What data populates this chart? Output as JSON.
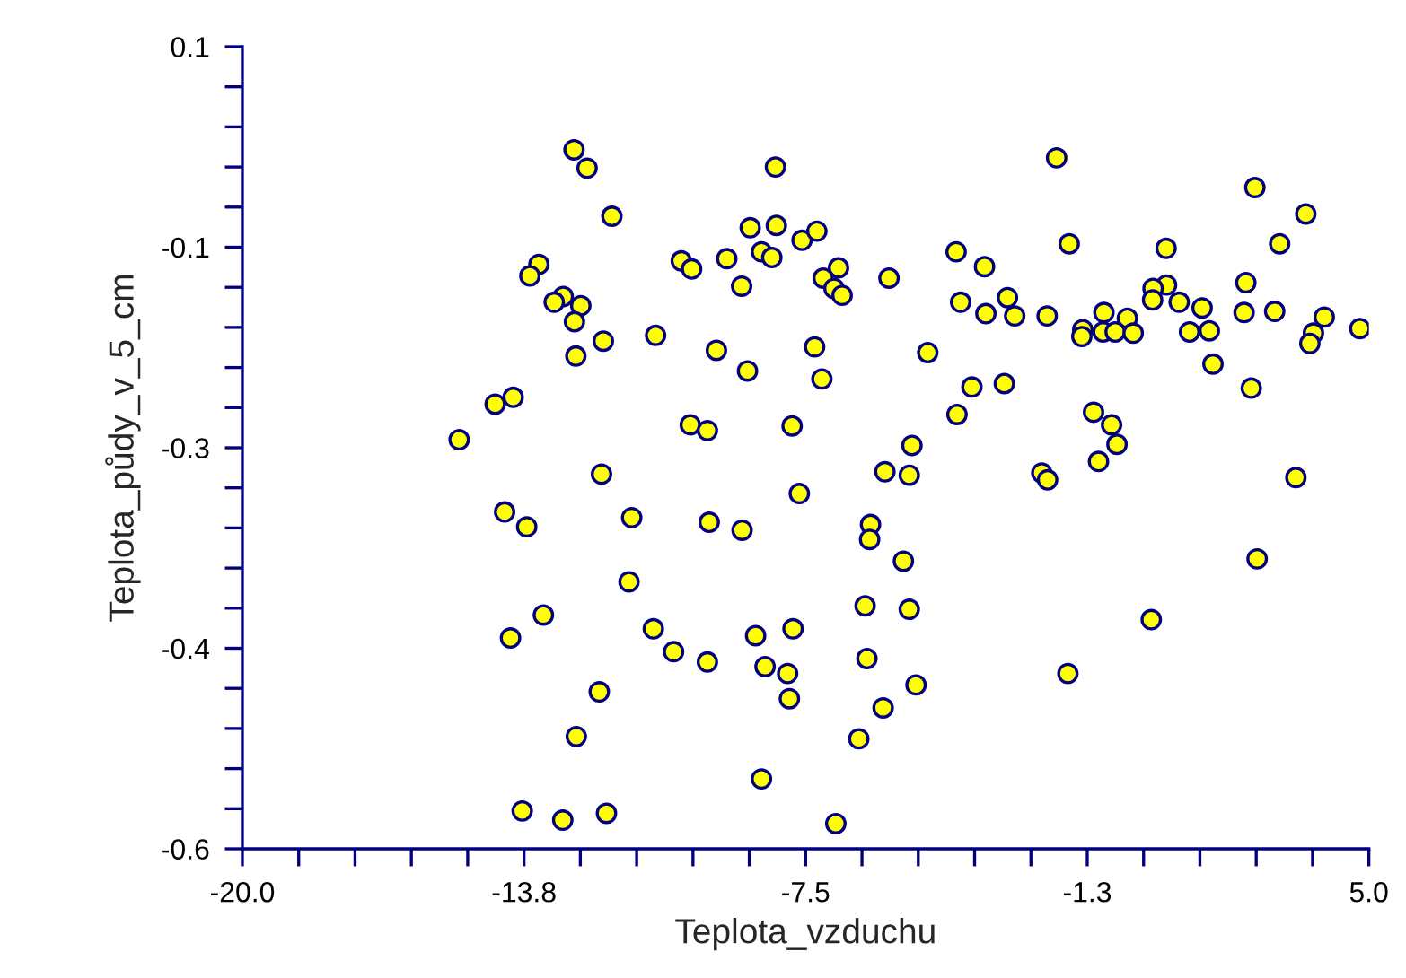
{
  "chart_data": {
    "type": "scatter",
    "xlabel": "Teplota_vzduchu",
    "ylabel": "Teplota_půdy_v_5_cm",
    "color": "#ffff00",
    "marker": "circle",
    "x": [
      -12.64,
      -12.35,
      -11.8,
      -8.17,
      -8.73,
      -8.15,
      -7.58,
      -13.42,
      -13.62,
      -10.26,
      -10.03,
      -9.25,
      -8.48,
      -8.25,
      -8.92,
      -12.88,
      -13.08,
      -12.49,
      -12.63,
      -11.99,
      -10.83,
      -12.6,
      -9.48,
      -8.79,
      -14.39,
      -13.99,
      -15.19,
      -10.06,
      -9.68,
      -7.8,
      -12.03,
      -1.93,
      2.47,
      3.6,
      -7.25,
      -1.65,
      3.02,
      0.5,
      -4.16,
      -3.53,
      -6.77,
      -7.11,
      -6.87,
      -6.69,
      -5.65,
      0.51,
      0.21,
      0.2,
      2.27,
      -4.06,
      -3.02,
      0.79,
      1.3,
      -3.5,
      -2.86,
      -2.14,
      -0.88,
      -0.36,
      2.23,
      2.91,
      4.01,
      4.8,
      -1.35,
      -1.37,
      -0.9,
      -0.63,
      -0.23,
      1.02,
      1.46,
      3.77,
      3.69,
      -7.3,
      -4.79,
      1.54,
      -7.14,
      -3.81,
      -3.09,
      2.39,
      -4.14,
      -1.11,
      -0.71,
      -5.14,
      -0.59,
      -1.0,
      -5.74,
      -5.2,
      -2.26,
      -2.13,
      3.38,
      -7.64,
      -14.18,
      -13.69,
      -11.36,
      -9.64,
      -8.91,
      -11.42,
      -13.32,
      -14.05,
      -10.88,
      -10.43,
      -9.68,
      -8.61,
      -7.78,
      -8.4,
      -7.9,
      -7.86,
      -12.08,
      -12.59,
      -8.48,
      -13.79,
      -12.89,
      -11.92,
      -6.06,
      -6.08,
      -5.33,
      -6.18,
      -5.2,
      -6.14,
      -5.05,
      -5.78,
      -6.32,
      -6.83,
      2.52,
      0.17,
      -1.68
    ],
    "values": [
      0.01,
      -0.006,
      -0.048,
      -0.005,
      -0.058,
      -0.056,
      -0.069,
      -0.09,
      -0.1,
      -0.087,
      -0.094,
      -0.085,
      -0.079,
      -0.084,
      -0.109,
      -0.118,
      -0.123,
      -0.126,
      -0.14,
      -0.157,
      -0.152,
      -0.17,
      -0.165,
      -0.183,
      -0.212,
      -0.206,
      -0.243,
      -0.23,
      -0.235,
      -0.231,
      -0.273,
      0.003,
      -0.023,
      -0.046,
      -0.061,
      -0.072,
      -0.072,
      -0.076,
      -0.079,
      -0.092,
      -0.093,
      -0.102,
      -0.111,
      -0.117,
      -0.102,
      -0.108,
      -0.111,
      -0.121,
      -0.106,
      -0.123,
      -0.119,
      -0.123,
      -0.128,
      -0.133,
      -0.135,
      -0.135,
      -0.132,
      -0.137,
      -0.132,
      -0.131,
      -0.136,
      -0.146,
      -0.147,
      -0.153,
      -0.149,
      -0.149,
      -0.15,
      -0.149,
      -0.148,
      -0.15,
      -0.159,
      -0.162,
      -0.167,
      -0.177,
      -0.19,
      -0.197,
      -0.194,
      -0.198,
      -0.221,
      -0.219,
      -0.23,
      -0.248,
      -0.247,
      -0.262,
      -0.271,
      -0.274,
      -0.272,
      -0.278,
      -0.276,
      -0.29,
      -0.306,
      -0.319,
      -0.311,
      -0.315,
      -0.322,
      -0.367,
      -0.396,
      -0.416,
      -0.408,
      -0.428,
      -0.437,
      -0.414,
      -0.408,
      -0.441,
      -0.447,
      -0.469,
      -0.463,
      -0.502,
      -0.539,
      -0.567,
      -0.575,
      -0.569,
      -0.317,
      -0.33,
      -0.349,
      -0.388,
      -0.391,
      -0.434,
      -0.457,
      -0.477,
      -0.504,
      -0.578,
      -0.347,
      -0.4,
      -0.447
    ],
    "xlim": [
      -20,
      5
    ],
    "xticks": [
      {
        "value": -20,
        "label": "-20.0"
      },
      {
        "value": -18.75,
        "label": null
      },
      {
        "value": -17.5,
        "label": null
      },
      {
        "value": -16.25,
        "label": null
      },
      {
        "value": -15,
        "label": null
      },
      {
        "value": -13.75,
        "label": "-13.8"
      },
      {
        "value": -12.5,
        "label": null
      },
      {
        "value": -11.25,
        "label": null
      },
      {
        "value": -10,
        "label": null
      },
      {
        "value": -8.75,
        "label": null
      },
      {
        "value": -7.5,
        "label": "-7.5"
      },
      {
        "value": -6.25,
        "label": null
      },
      {
        "value": -5,
        "label": null
      },
      {
        "value": -3.75,
        "label": null
      },
      {
        "value": -2.5,
        "label": null
      },
      {
        "value": -1.25,
        "label": "-1.3"
      },
      {
        "value": 0,
        "label": null
      },
      {
        "value": 1.25,
        "label": null
      },
      {
        "value": 2.5,
        "label": null
      },
      {
        "value": 3.75,
        "label": null
      },
      {
        "value": 5,
        "label": "5.0"
      }
    ],
    "ylim": [
      -0.6,
      0.1
    ],
    "yticks": [
      {
        "value": 0.1,
        "label": "0.1"
      },
      {
        "value": 0.065,
        "label": null
      },
      {
        "value": 0.03,
        "label": null
      },
      {
        "value": -0.005,
        "label": null
      },
      {
        "value": -0.04,
        "label": null
      },
      {
        "value": -0.075,
        "label": "-0.1"
      },
      {
        "value": -0.11,
        "label": null
      },
      {
        "value": -0.145,
        "label": null
      },
      {
        "value": -0.18,
        "label": null
      },
      {
        "value": -0.215,
        "label": null
      },
      {
        "value": -0.25,
        "label": "-0.3"
      },
      {
        "value": -0.285,
        "label": null
      },
      {
        "value": -0.32,
        "label": null
      },
      {
        "value": -0.355,
        "label": null
      },
      {
        "value": -0.39,
        "label": null
      },
      {
        "value": -0.425,
        "label": "-0.4"
      },
      {
        "value": -0.46,
        "label": null
      },
      {
        "value": -0.495,
        "label": null
      },
      {
        "value": -0.53,
        "label": null
      },
      {
        "value": -0.565,
        "label": null
      },
      {
        "value": -0.6,
        "label": "-0.6"
      }
    ]
  }
}
